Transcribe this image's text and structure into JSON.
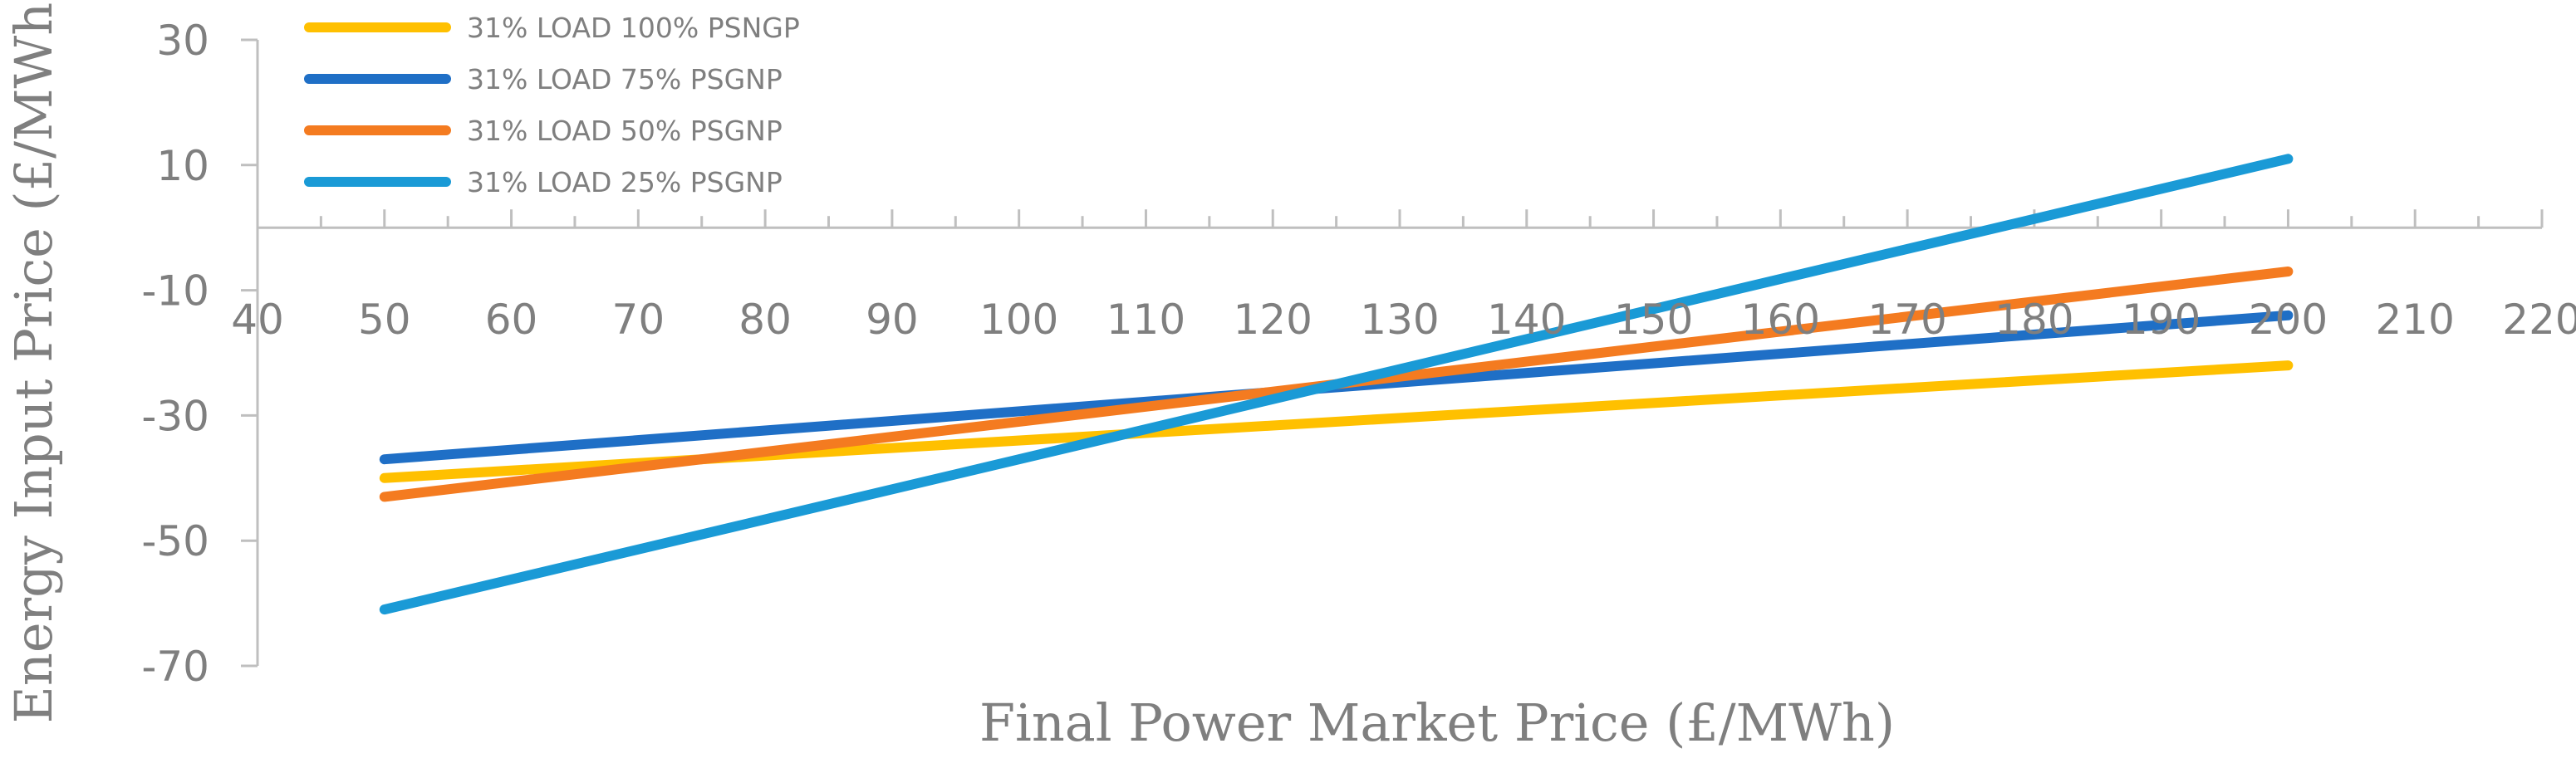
{
  "chart_data": {
    "type": "line",
    "title": "",
    "xlabel": "Final Power Market Price (£/MWh)",
    "ylabel": "Energy Input Price (£/MWh)",
    "xlim": [
      40,
      220
    ],
    "ylim": [
      -70,
      30
    ],
    "x_ticks": [
      40,
      50,
      60,
      70,
      80,
      90,
      100,
      110,
      120,
      130,
      140,
      150,
      160,
      170,
      180,
      190,
      200,
      210,
      220
    ],
    "y_ticks": [
      30,
      10,
      -10,
      -30,
      -50,
      -70
    ],
    "x_axis_crosses_at_y": 0,
    "grid": false,
    "legend_position": "top-left",
    "axis_color": "#bfbfbf",
    "text_color": "#7f7f7f",
    "series": [
      {
        "name": "31% LOAD 100% PSNGP",
        "color": "#ffc000",
        "x": [
          50,
          200
        ],
        "y": [
          -40,
          -22
        ]
      },
      {
        "name": "31% LOAD 75% PSGNP",
        "color": "#1f6fc6",
        "x": [
          50,
          200
        ],
        "y": [
          -37,
          -14
        ]
      },
      {
        "name": "31% LOAD 50% PSGNP",
        "color": "#f47b20",
        "x": [
          50,
          200
        ],
        "y": [
          -43,
          -7
        ]
      },
      {
        "name": "31% LOAD 25% PSGNP",
        "color": "#1a9ad6",
        "x": [
          50,
          200
        ],
        "y": [
          -61,
          11
        ]
      }
    ]
  }
}
